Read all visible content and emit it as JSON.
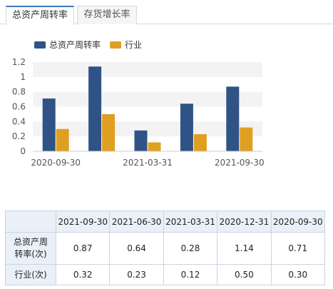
{
  "tabs": [
    {
      "label": "总资产周转率",
      "active": true
    },
    {
      "label": "存货增长率",
      "active": false
    }
  ],
  "colors": {
    "series_main": "#2f5387",
    "series_industry": "#dfa022",
    "band": "#f3f3f3",
    "header_bg": "#eaf0f7"
  },
  "chart_data": {
    "type": "bar",
    "categories": [
      "2020-09-30",
      "2020-12-31",
      "2021-03-31",
      "2021-06-30",
      "2021-09-30"
    ],
    "visible_x_tick_labels": [
      "2020-09-30",
      "2021-03-31",
      "2021-09-30"
    ],
    "series": [
      {
        "name": "总资产周转率",
        "values": [
          0.71,
          1.14,
          0.28,
          0.64,
          0.87
        ]
      },
      {
        "name": "行业",
        "values": [
          0.3,
          0.5,
          0.12,
          0.23,
          0.32
        ]
      }
    ],
    "yticks": [
      "0",
      "0.2",
      "0.4",
      "0.6",
      "0.8",
      "1",
      "1.2"
    ],
    "ylim": [
      0,
      1.2
    ],
    "legend": "top-left",
    "grid": "alternating horizontal bands"
  },
  "table": {
    "columns": [
      "2021-09-30",
      "2021-06-30",
      "2021-03-31",
      "2020-12-31",
      "2020-09-30"
    ],
    "rows": [
      {
        "label": "总资产周\n转率(次)",
        "values": [
          "0.87",
          "0.64",
          "0.28",
          "1.14",
          "0.71"
        ]
      },
      {
        "label": "行业(次)",
        "values": [
          "0.32",
          "0.23",
          "0.12",
          "0.50",
          "0.30"
        ]
      }
    ]
  }
}
